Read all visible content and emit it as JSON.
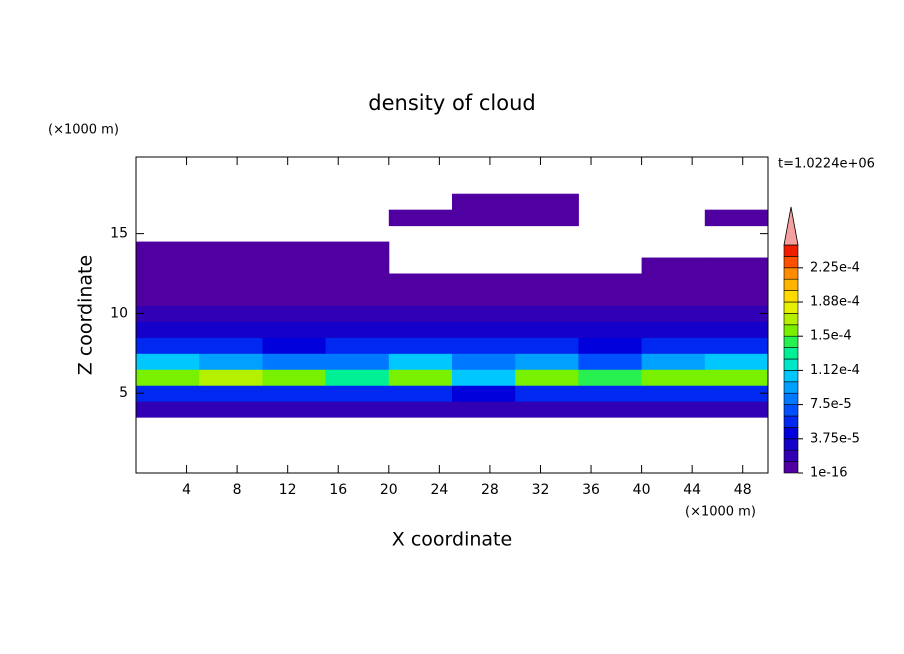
{
  "chart_data": {
    "type": "heatmap",
    "title": "density of cloud",
    "x_label": "X coordinate",
    "y_label": "Z coordinate",
    "x_unit": "(×1000 m)",
    "y_unit": "(×1000 m)",
    "time_label": "t=1.0224e+06",
    "xlim": [
      0,
      50
    ],
    "ylim": [
      0,
      19.8
    ],
    "xticks": [
      4,
      8,
      12,
      16,
      20,
      24,
      28,
      32,
      36,
      40,
      44,
      48
    ],
    "yticks": [
      5,
      10,
      15
    ],
    "x_edges": [
      0,
      5,
      10,
      15,
      20,
      25,
      30,
      35,
      40,
      45,
      50
    ],
    "z_edges": [
      3.5,
      4.5,
      5.5,
      6.5,
      7.5,
      8.5,
      9.5,
      10.5,
      11.5,
      12.5,
      13.5,
      14.5,
      15.5,
      16.5,
      17.5
    ],
    "values": [
      [
        2e-05,
        2e-05,
        2e-05,
        2e-05,
        2e-05,
        2e-05,
        2e-05,
        2e-05,
        2e-05,
        2e-05
      ],
      [
        6e-05,
        6e-05,
        6e-05,
        6e-05,
        6e-05,
        4e-05,
        6e-05,
        6e-05,
        6e-05,
        6e-05
      ],
      [
        0.00016,
        0.00017,
        0.00015,
        0.00013,
        0.00016,
        0.00011,
        0.00016,
        0.00014,
        0.00016,
        0.00015
      ],
      [
        0.00011,
        9e-05,
        8e-05,
        8e-05,
        0.00011,
        8e-05,
        9e-05,
        7e-05,
        9e-05,
        0.0001
      ],
      [
        5e-05,
        5e-05,
        4e-05,
        5e-05,
        5e-05,
        6e-05,
        5e-05,
        4e-05,
        5e-05,
        5e-05
      ],
      [
        3e-05,
        3e-05,
        3e-05,
        3e-05,
        3e-05,
        3e-05,
        3e-05,
        3e-05,
        3e-05,
        3e-05
      ],
      [
        2e-05,
        2e-05,
        2e-05,
        2e-05,
        2e-05,
        2e-05,
        2e-05,
        2e-05,
        2e-05,
        2e-05
      ],
      [
        1e-05,
        1e-05,
        1e-05,
        1e-05,
        1e-05,
        1e-05,
        1e-05,
        1e-05,
        1e-05,
        1e-05
      ],
      [
        5e-06,
        5e-06,
        5e-06,
        5e-06,
        5e-06,
        5e-06,
        5e-06,
        5e-06,
        5e-06,
        5e-06
      ],
      [
        5e-06,
        5e-06,
        5e-06,
        5e-06,
        null,
        null,
        null,
        null,
        5e-06,
        5e-06
      ],
      [
        5e-06,
        5e-06,
        5e-06,
        5e-06,
        null,
        null,
        null,
        null,
        null,
        null
      ],
      [
        null,
        null,
        null,
        null,
        null,
        null,
        null,
        null,
        null,
        null
      ],
      [
        null,
        null,
        null,
        null,
        5e-06,
        5e-06,
        5e-06,
        null,
        null,
        5e-06
      ],
      [
        null,
        null,
        null,
        null,
        null,
        5e-06,
        5e-06,
        null,
        null,
        null
      ]
    ],
    "levels": [
      1e-16,
      1.25e-05,
      2.5e-05,
      3.75e-05,
      5e-05,
      6.25e-05,
      7.5e-05,
      8.75e-05,
      0.0001,
      0.0001125,
      0.000125,
      0.0001375,
      0.00015,
      0.0001625,
      0.000175,
      0.0001875,
      0.0002,
      0.0002125,
      0.000225,
      0.0002375,
      0.00025
    ],
    "colors": [
      "#5000a0",
      "#3200b4",
      "#1400c8",
      "#0000dc",
      "#0028f0",
      "#0050ff",
      "#0078ff",
      "#00a0ff",
      "#00c8ff",
      "#00e6c8",
      "#00f096",
      "#28f050",
      "#78f000",
      "#b4f000",
      "#e6f000",
      "#ffdc00",
      "#ffb400",
      "#ff8c00",
      "#ff5000",
      "#f01e00"
    ],
    "extend_color": "#f4a0a0",
    "colorbar_ticks": [
      {
        "value": 1e-16,
        "label": "1e-16"
      },
      {
        "value": 3.75e-05,
        "label": "3.75e-5"
      },
      {
        "value": 7.5e-05,
        "label": "7.5e-5"
      },
      {
        "value": 0.0001125,
        "label": "1.12e-4"
      },
      {
        "value": 0.00015,
        "label": "1.5e-4"
      },
      {
        "value": 0.0001875,
        "label": "1.88e-4"
      },
      {
        "value": 0.000225,
        "label": "2.25e-4"
      }
    ]
  }
}
